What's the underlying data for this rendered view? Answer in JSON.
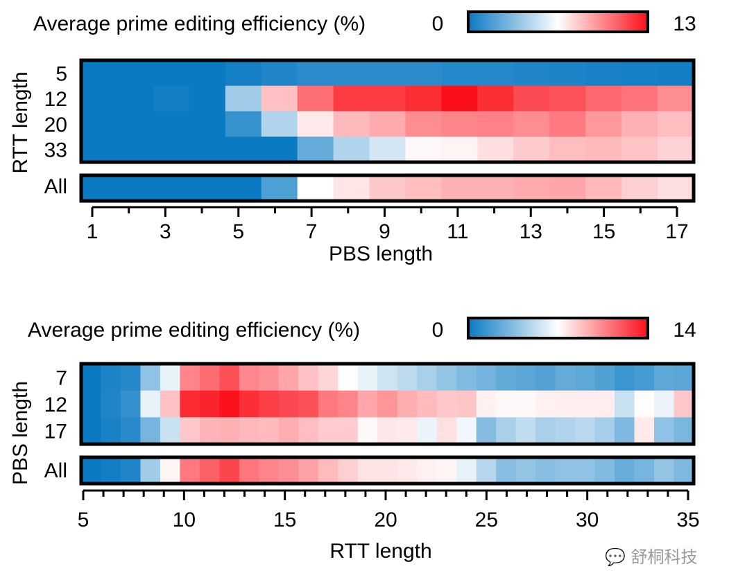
{
  "colors": {
    "low": "#0a7ac3",
    "mid": "#ffffff",
    "high": "#fb0f19",
    "border": "#000000"
  },
  "chart_data": [
    {
      "type": "heatmap",
      "colorbar": {
        "label": "Average prime editing efficiency (%)",
        "min_label": "0",
        "max_label": "13",
        "min": 0,
        "max": 13
      },
      "xlabel": "PBS length",
      "ylabel": "RTT length",
      "x": [
        1,
        2,
        3,
        4,
        5,
        6,
        7,
        8,
        9,
        10,
        11,
        12,
        13,
        14,
        15,
        16,
        17
      ],
      "xticks_labeled": [
        1,
        3,
        5,
        7,
        9,
        11,
        13,
        15,
        17
      ],
      "xtick_labels": [
        "1",
        "3",
        "5",
        "7",
        "9",
        "11",
        "13",
        "15",
        "17"
      ],
      "rows": [
        "5",
        "12",
        "20",
        "33"
      ],
      "values": [
        [
          0,
          0,
          0,
          0,
          0.3,
          0.6,
          0.9,
          0.9,
          0.9,
          0.9,
          0.7,
          0.7,
          0.6,
          0.5,
          0.4,
          0.3,
          0.2
        ],
        [
          0,
          0,
          0.2,
          0,
          4,
          8.2,
          10.4,
          11.8,
          11.8,
          12.2,
          13,
          12.2,
          11.4,
          11.2,
          10.6,
          10.3,
          9.6
        ],
        [
          0,
          0,
          0,
          0,
          1.2,
          4.4,
          7.1,
          8.4,
          8.8,
          9.6,
          9.8,
          9.9,
          9.6,
          10.1,
          9.3,
          8.6,
          8.3
        ],
        [
          0,
          0,
          0,
          0,
          0,
          0,
          2.4,
          4.4,
          5.3,
          6.7,
          6.8,
          7.4,
          7.9,
          8.3,
          8.4,
          8.1,
          7.7
        ]
      ],
      "summary_row": {
        "label": "All",
        "values": [
          0,
          0,
          0,
          0,
          0,
          1.8,
          6.5,
          7.2,
          8,
          8.3,
          8.6,
          8.6,
          8.8,
          8.9,
          8.4,
          7.8,
          7.4
        ]
      }
    },
    {
      "type": "heatmap",
      "colorbar": {
        "label": "Average prime editing efficiency (%)",
        "min_label": "0",
        "max_label": "14",
        "min": 0,
        "max": 14
      },
      "xlabel": "RTT length",
      "ylabel": "PBS length",
      "x": [
        5,
        6,
        7,
        8,
        9,
        10,
        11,
        12,
        13,
        14,
        15,
        16,
        17,
        18,
        19,
        20,
        21,
        22,
        23,
        24,
        25,
        26,
        27,
        28,
        29,
        30,
        31,
        32,
        33,
        34,
        35
      ],
      "xticks_labeled": [
        5,
        10,
        15,
        20,
        25,
        30,
        35
      ],
      "xtick_labels": [
        "5",
        "10",
        "15",
        "20",
        "25",
        "30",
        "35"
      ],
      "rows": [
        "7",
        "12",
        "17"
      ],
      "values": [
        [
          0,
          0.5,
          0.8,
          3.8,
          6.3,
          10.6,
          11.3,
          12.1,
          10.5,
          10.2,
          9.6,
          8.8,
          8.2,
          7.1,
          6.3,
          5.6,
          5.1,
          4.5,
          3.9,
          3.4,
          3,
          2.5,
          2.3,
          2.1,
          2.6,
          2.4,
          2,
          1.4,
          1.7,
          2.4,
          2.3
        ],
        [
          0,
          0.6,
          1.2,
          6.3,
          8.8,
          13.2,
          13.4,
          13.9,
          13.1,
          12.6,
          12.3,
          12.1,
          10.9,
          10.6,
          9.6,
          10.1,
          9.4,
          9,
          8.6,
          8.7,
          7.4,
          7.2,
          7.2,
          7.4,
          7.5,
          7.5,
          7.5,
          5.4,
          7.1,
          6.4,
          8.6
        ],
        [
          0,
          0.4,
          0.9,
          3.1,
          5.4,
          8.6,
          9.2,
          9.3,
          9.1,
          9,
          9.4,
          8.9,
          8.5,
          8.5,
          7.2,
          7.7,
          7.6,
          6.4,
          7.9,
          6.6,
          3.5,
          4.5,
          5.2,
          4.5,
          4.7,
          5,
          4.4,
          3.3,
          7.6,
          3.8,
          3.2
        ]
      ],
      "summary_row": {
        "label": "All",
        "values": [
          0,
          0.2,
          0.6,
          4.3,
          7.3,
          10.9,
          11.6,
          12.4,
          11,
          10.6,
          10.3,
          9.7,
          9,
          8.4,
          7.8,
          7.8,
          7.6,
          7.4,
          7.3,
          6.3,
          4.9,
          3.6,
          3.9,
          3.6,
          3.8,
          3.8,
          3.4,
          2.7,
          3.1,
          3.9,
          3.3
        ]
      }
    }
  ],
  "watermark": {
    "text": "舒桐科技"
  }
}
